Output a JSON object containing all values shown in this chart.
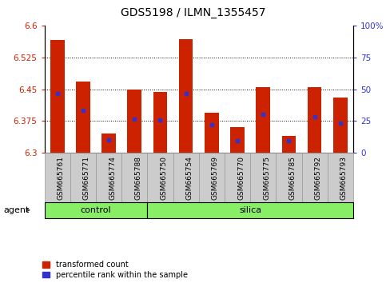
{
  "title": "GDS5198 / ILMN_1355457",
  "samples": [
    "GSM665761",
    "GSM665771",
    "GSM665774",
    "GSM665788",
    "GSM665750",
    "GSM665754",
    "GSM665769",
    "GSM665770",
    "GSM665775",
    "GSM665785",
    "GSM665792",
    "GSM665793"
  ],
  "n_control": 4,
  "n_silica": 8,
  "bar_values": [
    6.565,
    6.468,
    6.345,
    6.45,
    6.443,
    6.567,
    6.395,
    6.36,
    6.455,
    6.34,
    6.455,
    6.43
  ],
  "bar_base": 6.3,
  "percentile_values": [
    6.44,
    6.4,
    6.33,
    6.38,
    6.378,
    6.44,
    6.367,
    6.328,
    6.39,
    6.328,
    6.385,
    6.37
  ],
  "ylim": [
    6.3,
    6.6
  ],
  "yticks_left": [
    6.3,
    6.375,
    6.45,
    6.525,
    6.6
  ],
  "yticks_right": [
    0,
    25,
    50,
    75,
    100
  ],
  "bar_color": "#cc2200",
  "percentile_color": "#3333cc",
  "group_color": "#88ee66",
  "xtick_bg_color": "#cccccc",
  "bg_color": "#ffffff",
  "bar_width": 0.55,
  "group_label": "agent",
  "control_label": "control",
  "silica_label": "silica",
  "legend_tc": "transformed count",
  "legend_pr": "percentile rank within the sample",
  "title_fontsize": 10,
  "tick_fontsize": 7.5,
  "label_fontsize": 7.5
}
